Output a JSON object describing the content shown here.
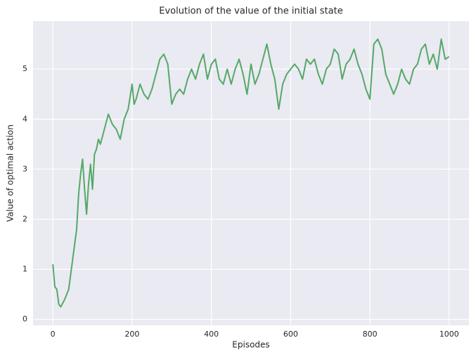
{
  "chart_data": {
    "type": "line",
    "title": "Evolution of the value of the initial state",
    "xlabel": "Episodes",
    "ylabel": "Value of optimal action",
    "x": [
      0,
      5,
      10,
      15,
      20,
      30,
      40,
      50,
      60,
      65,
      70,
      75,
      80,
      85,
      90,
      95,
      100,
      105,
      110,
      115,
      120,
      130,
      140,
      150,
      160,
      170,
      180,
      190,
      200,
      205,
      210,
      220,
      230,
      240,
      250,
      260,
      270,
      280,
      290,
      300,
      310,
      320,
      330,
      340,
      350,
      360,
      370,
      380,
      390,
      400,
      410,
      420,
      430,
      440,
      450,
      460,
      470,
      480,
      490,
      500,
      510,
      520,
      530,
      540,
      550,
      560,
      570,
      580,
      590,
      600,
      610,
      620,
      630,
      640,
      650,
      660,
      670,
      680,
      690,
      700,
      710,
      720,
      730,
      740,
      750,
      760,
      770,
      780,
      790,
      800,
      810,
      820,
      830,
      840,
      850,
      860,
      870,
      880,
      890,
      900,
      910,
      920,
      930,
      940,
      950,
      960,
      970,
      980,
      990,
      1000
    ],
    "values": [
      1.1,
      0.65,
      0.6,
      0.3,
      0.25,
      0.4,
      0.6,
      1.2,
      1.8,
      2.5,
      2.9,
      3.2,
      2.6,
      2.1,
      2.7,
      3.1,
      2.6,
      3.3,
      3.4,
      3.6,
      3.5,
      3.8,
      4.1,
      3.9,
      3.8,
      3.6,
      4.0,
      4.2,
      4.7,
      4.3,
      4.4,
      4.7,
      4.5,
      4.4,
      4.6,
      4.9,
      5.2,
      5.3,
      5.1,
      4.3,
      4.5,
      4.6,
      4.5,
      4.8,
      5.0,
      4.8,
      5.1,
      5.3,
      4.8,
      5.1,
      5.2,
      4.8,
      4.7,
      5.0,
      4.7,
      5.0,
      5.2,
      4.9,
      4.5,
      5.1,
      4.7,
      4.9,
      5.2,
      5.5,
      5.1,
      4.8,
      4.2,
      4.7,
      4.9,
      5.0,
      5.1,
      5.0,
      4.8,
      5.2,
      5.1,
      5.2,
      4.9,
      4.7,
      5.0,
      5.1,
      5.4,
      5.3,
      4.8,
      5.1,
      5.2,
      5.4,
      5.1,
      4.9,
      4.6,
      4.4,
      5.5,
      5.6,
      5.4,
      4.9,
      4.7,
      4.5,
      4.7,
      5.0,
      4.8,
      4.7,
      5.0,
      5.1,
      5.4,
      5.5,
      5.1,
      5.3,
      5.0,
      5.6,
      5.2,
      5.25
    ],
    "color": "#55a868",
    "xlim": [
      -50,
      1050
    ],
    "ylim": [
      -0.12,
      5.96
    ],
    "xticks": [
      0,
      200,
      400,
      600,
      800,
      1000
    ],
    "yticks": [
      0,
      1,
      2,
      3,
      4,
      5
    ],
    "grid": true
  }
}
